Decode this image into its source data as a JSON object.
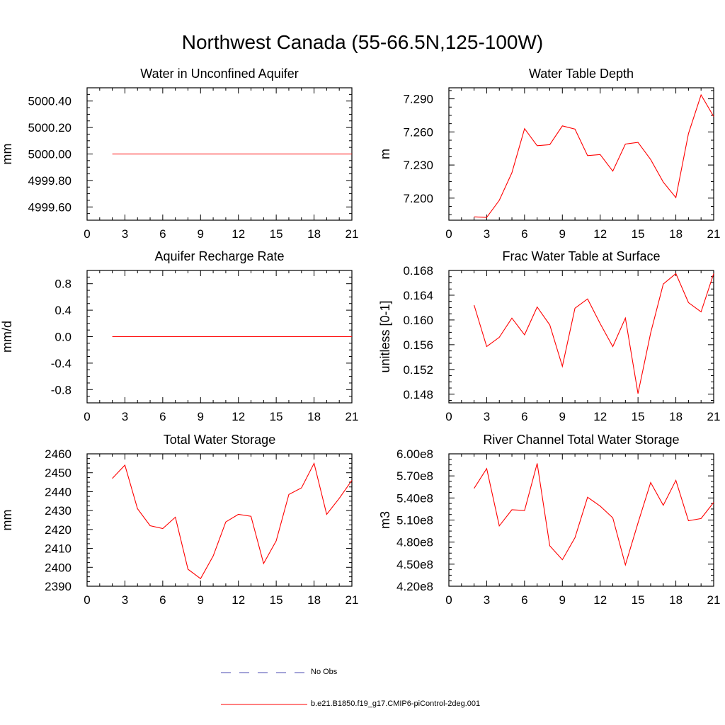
{
  "title": "Northwest Canada (55-66.5N,125-100W)",
  "colors": {
    "model": "#ff0000",
    "obs": "#4a4ab0",
    "axis": "#000000"
  },
  "legend": [
    {
      "label": "No Obs",
      "style": "dashed",
      "color": "#4a4ab0"
    },
    {
      "label": "b.e21.B1850.f19_g17.CMIP6-piControl-2deg.001",
      "style": "solid",
      "color": "#ff0000"
    }
  ],
  "chart_data": [
    {
      "type": "line",
      "title": "Water in Unconfined Aquifer",
      "ylabel": "mm",
      "xlim": [
        0,
        21
      ],
      "ylim": [
        4999.5,
        5000.5
      ],
      "xticks": [
        0,
        3,
        6,
        9,
        12,
        15,
        18,
        21
      ],
      "yticks": [
        4999.6,
        4999.8,
        5000.0,
        5000.2,
        5000.4
      ],
      "ytick_labels": [
        "4999.60",
        "4999.80",
        "5000.00",
        "5000.20",
        "5000.40"
      ],
      "series": [
        {
          "x": [
            2,
            3,
            4,
            5,
            6,
            7,
            8,
            9,
            10,
            11,
            12,
            13,
            14,
            15,
            16,
            17,
            18,
            19,
            20,
            21
          ],
          "y": [
            5000,
            5000,
            5000,
            5000,
            5000,
            5000,
            5000,
            5000,
            5000,
            5000,
            5000,
            5000,
            5000,
            5000,
            5000,
            5000,
            5000,
            5000,
            5000,
            5000
          ]
        }
      ]
    },
    {
      "type": "line",
      "title": "Water Table Depth",
      "ylabel": "m",
      "xlim": [
        0,
        21
      ],
      "ylim": [
        7.18,
        7.3
      ],
      "xticks": [
        0,
        3,
        6,
        9,
        12,
        15,
        18,
        21
      ],
      "yticks": [
        7.2,
        7.23,
        7.26,
        7.29
      ],
      "ytick_labels": [
        "7.200",
        "7.230",
        "7.260",
        "7.290"
      ],
      "series": [
        {
          "x": [
            2,
            3,
            4,
            5,
            6,
            7,
            8,
            9,
            10,
            11,
            12,
            13,
            14,
            15,
            16,
            17,
            18,
            19,
            20,
            21
          ],
          "y": [
            7.183,
            7.1825,
            7.198,
            7.223,
            7.263,
            7.2475,
            7.2485,
            7.2655,
            7.2625,
            7.2385,
            7.2395,
            7.2245,
            7.249,
            7.2505,
            7.235,
            7.2145,
            7.2005,
            7.2585,
            7.2935,
            7.274
          ]
        }
      ]
    },
    {
      "type": "line",
      "title": "Aquifer Recharge Rate",
      "ylabel": "mm/d",
      "xlim": [
        0,
        21
      ],
      "ylim": [
        -1.0,
        1.0
      ],
      "xticks": [
        0,
        3,
        6,
        9,
        12,
        15,
        18,
        21
      ],
      "yticks": [
        -0.8,
        -0.4,
        0.0,
        0.4,
        0.8
      ],
      "ytick_labels": [
        "-0.8",
        "-0.4",
        "0.0",
        "0.4",
        "0.8"
      ],
      "series": [
        {
          "x": [
            2,
            3,
            4,
            5,
            6,
            7,
            8,
            9,
            10,
            11,
            12,
            13,
            14,
            15,
            16,
            17,
            18,
            19,
            20,
            21
          ],
          "y": [
            0,
            0,
            0,
            0,
            0,
            0,
            0,
            0,
            0,
            0,
            0,
            0,
            0,
            0,
            0,
            0,
            0,
            0,
            0,
            0
          ]
        }
      ]
    },
    {
      "type": "line",
      "title": "Frac Water Table at Surface",
      "ylabel": "unitless [0-1]",
      "xlim": [
        0,
        21
      ],
      "ylim": [
        0.1466,
        0.168
      ],
      "xticks": [
        0,
        3,
        6,
        9,
        12,
        15,
        18,
        21
      ],
      "yticks": [
        0.148,
        0.152,
        0.156,
        0.16,
        0.164,
        0.168
      ],
      "ytick_labels": [
        "0.148",
        "0.152",
        "0.156",
        "0.160",
        "0.164",
        "0.168"
      ],
      "series": [
        {
          "x": [
            2,
            3,
            4,
            5,
            6,
            7,
            8,
            9,
            10,
            11,
            12,
            13,
            14,
            15,
            16,
            17,
            18,
            19,
            20,
            21
          ],
          "y": [
            0.1624,
            0.1557,
            0.1572,
            0.1603,
            0.1576,
            0.1621,
            0.1592,
            0.1525,
            0.1619,
            0.1634,
            0.1594,
            0.1557,
            0.1603,
            0.1481,
            0.1579,
            0.1658,
            0.1675,
            0.1628,
            0.1613,
            0.1675
          ]
        }
      ]
    },
    {
      "type": "line",
      "title": "Total Water Storage",
      "ylabel": "mm",
      "xlim": [
        0,
        21
      ],
      "ylim": [
        2390,
        2460
      ],
      "xticks": [
        0,
        3,
        6,
        9,
        12,
        15,
        18,
        21
      ],
      "yticks": [
        2390,
        2400,
        2410,
        2420,
        2430,
        2440,
        2450,
        2460
      ],
      "ytick_labels": [
        "2390",
        "2400",
        "2410",
        "2420",
        "2430",
        "2440",
        "2450",
        "2460"
      ],
      "series": [
        {
          "x": [
            2,
            3,
            4,
            5,
            6,
            7,
            8,
            9,
            10,
            11,
            12,
            13,
            14,
            15,
            16,
            17,
            18,
            19,
            20,
            21
          ],
          "y": [
            2447,
            2454,
            2431,
            2422,
            2420.5,
            2426.5,
            2399,
            2394,
            2406,
            2424,
            2428,
            2427,
            2402,
            2414,
            2438.5,
            2442,
            2455,
            2428,
            2436.5,
            2446
          ]
        }
      ]
    },
    {
      "type": "line",
      "title": "River Channel Total Water Storage",
      "ylabel": "m3",
      "xlim": [
        0,
        21
      ],
      "ylim": [
        420000000,
        600000000
      ],
      "xticks": [
        0,
        3,
        6,
        9,
        12,
        15,
        18,
        21
      ],
      "yticks": [
        420000000,
        450000000,
        480000000,
        510000000,
        540000000,
        570000000,
        600000000
      ],
      "ytick_labels": [
        "4.20e8",
        "4.50e8",
        "4.80e8",
        "5.10e8",
        "5.40e8",
        "5.70e8",
        "6.00e8"
      ],
      "series": [
        {
          "x": [
            2,
            3,
            4,
            5,
            6,
            7,
            8,
            9,
            10,
            11,
            12,
            13,
            14,
            15,
            16,
            17,
            18,
            19,
            20,
            21
          ],
          "y": [
            553000000,
            580000000,
            502000000,
            524000000,
            523000000,
            587000000,
            475000000,
            456000000,
            486000000,
            541000000,
            529000000,
            513000000,
            449000000,
            506000000,
            561000000,
            530000000,
            564000000,
            509000000,
            512000000,
            534000000
          ]
        }
      ]
    }
  ]
}
